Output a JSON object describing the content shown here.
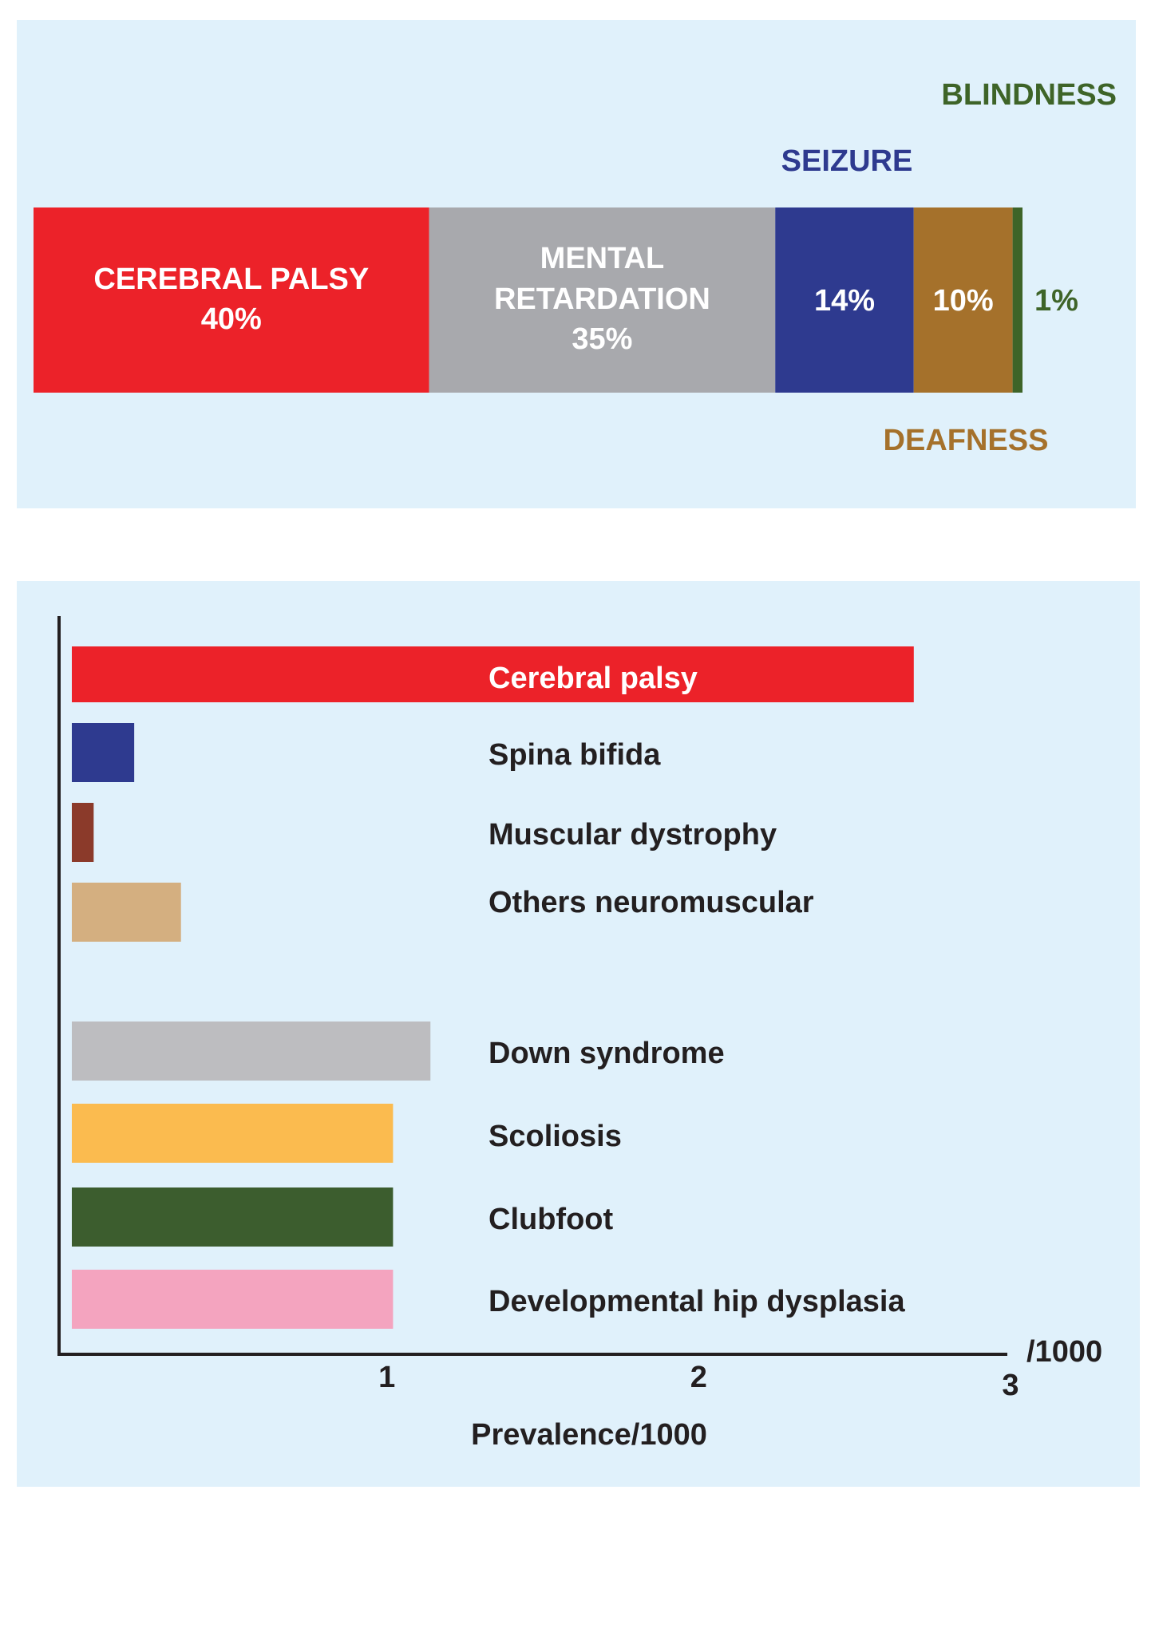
{
  "chart_data": [
    {
      "type": "bar",
      "orientation": "horizontal-stacked",
      "title": "",
      "categories": [
        "CEREBRAL PALSY",
        "MENTAL RETARDATION",
        "SEIZURE",
        "DEAFNESS",
        "BLINDNESS"
      ],
      "value_labels": [
        "40%",
        "35%",
        "14%",
        "10%",
        "1%"
      ],
      "values": [
        40,
        35,
        14,
        10,
        1
      ],
      "colors": [
        "#ec2229",
        "#a8a9ad",
        "#2e3a8f",
        "#a5712b",
        "#3e6428"
      ],
      "label_colors": [
        "#ffffff",
        "#ffffff",
        "#2e3a8f",
        "#a5712b",
        "#3e6428"
      ],
      "segment_labels": {
        "cerebral_palsy": [
          "CEREBRAL PALSY",
          "40%"
        ],
        "mental_retardation": [
          "MENTAL",
          "RETARDATION",
          "35%"
        ]
      }
    },
    {
      "type": "bar",
      "orientation": "horizontal",
      "title": "",
      "xlabel": "Prevalence/1000",
      "ylabel": "",
      "x_unit_label": "/1000",
      "xlim": [
        0,
        3
      ],
      "xticks": [
        "1",
        "2",
        "3"
      ],
      "grid": false,
      "categories": [
        "Cerebral palsy",
        "Spina bifida",
        "Muscular dystrophy",
        "Others neuromuscular",
        "Down syndrome",
        "Scoliosis",
        "Clubfoot",
        "Developmental hip dysplasia"
      ],
      "values": [
        2.7,
        0.2,
        0.07,
        0.35,
        1.15,
        1.03,
        1.03,
        1.03
      ],
      "colors": [
        "#ec2229",
        "#2e3a8f",
        "#8b3a2a",
        "#d4af80",
        "#bdbdc0",
        "#fbbb4f",
        "#3c5d2e",
        "#f4a4bf"
      ]
    }
  ]
}
